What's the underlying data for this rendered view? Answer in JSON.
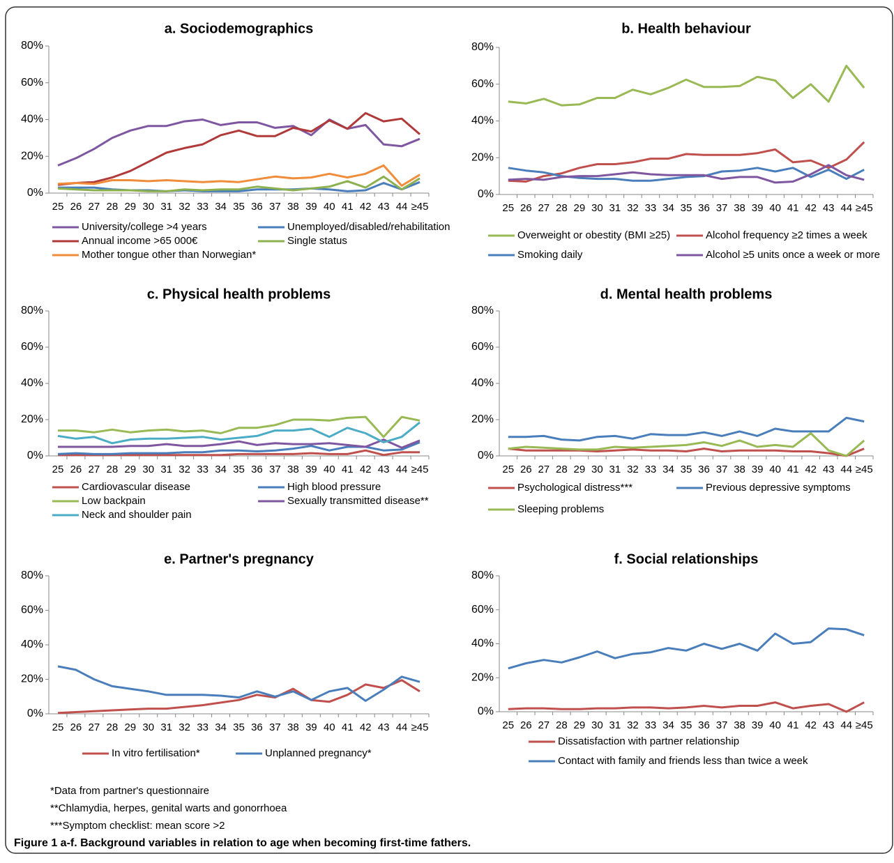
{
  "chart_data": [
    {
      "type": "line",
      "title": "a. Sociodemographics",
      "categories": [
        "25",
        "26",
        "27",
        "28",
        "29",
        "30",
        "31",
        "32",
        "33",
        "34",
        "35",
        "36",
        "37",
        "38",
        "39",
        "40",
        "41",
        "42",
        "43",
        "44",
        "≥45"
      ],
      "ylim": [
        0,
        80
      ],
      "yticks": [
        {
          "value": 0,
          "label": "0%"
        },
        {
          "value": 20,
          "label": "20%"
        },
        {
          "value": 40,
          "label": "40%"
        },
        {
          "value": 60,
          "label": "60%"
        },
        {
          "value": 80,
          "label": "80%"
        }
      ],
      "series": [
        {
          "name": "University/college >4 years",
          "color": "#7e57a0",
          "values": [
            15,
            19,
            24,
            30,
            34,
            36.5,
            36.5,
            39,
            40,
            37,
            38.5,
            38.5,
            35.5,
            36.5,
            31.5,
            40,
            35,
            37,
            26.5,
            25.5,
            29.5
          ]
        },
        {
          "name": "Unemployed/disabled/rehabilitation",
          "color": "#4a7ebb",
          "values": [
            3,
            3,
            3,
            2,
            1.5,
            1.5,
            1,
            1.5,
            1,
            1,
            1,
            2,
            2,
            2,
            2.5,
            2,
            1,
            1.5,
            5.5,
            2,
            6
          ]
        },
        {
          "name": "Annual income >65 000€",
          "color": "#b03a3a",
          "values": [
            4.5,
            5.5,
            6,
            8.5,
            12,
            17,
            22,
            24.5,
            26.5,
            31.5,
            34,
            31,
            31,
            35.5,
            33.5,
            39.5,
            35,
            43.5,
            39,
            40.5,
            32
          ]
        },
        {
          "name": "Single status",
          "color": "#8db14e",
          "values": [
            2.5,
            2,
            1.5,
            1.5,
            1.5,
            1,
            1,
            2,
            1.5,
            2,
            2,
            3.5,
            2.5,
            1.5,
            2.5,
            3.5,
            6.5,
            3,
            9,
            2,
            8
          ]
        },
        {
          "name": "Mother tongue other than Norwegian*",
          "color": "#f08c3a",
          "values": [
            5,
            5.5,
            5,
            7,
            7,
            6.5,
            7,
            6.5,
            6,
            6.5,
            6,
            7.5,
            9,
            8,
            8.5,
            10.5,
            8.5,
            10.5,
            15,
            4,
            10
          ]
        }
      ]
    },
    {
      "type": "line",
      "title": "b. Health behaviour",
      "categories": [
        "25",
        "26",
        "27",
        "28",
        "29",
        "30",
        "31",
        "32",
        "33",
        "34",
        "35",
        "36",
        "37",
        "38",
        "39",
        "40",
        "41",
        "42",
        "43",
        "44",
        "≥45"
      ],
      "ylim": [
        0,
        80
      ],
      "yticks": [
        {
          "value": 0,
          "label": "0%"
        },
        {
          "value": 20,
          "label": "20%"
        },
        {
          "value": 40,
          "label": "40%"
        },
        {
          "value": 60,
          "label": "60%"
        },
        {
          "value": 80,
          "label": "80%"
        }
      ],
      "series": [
        {
          "name": "Overweight or obestity (BMI ≥25)",
          "color": "#98b954",
          "values": [
            50.5,
            49.5,
            52,
            48.5,
            49,
            52.5,
            52.5,
            57,
            54.5,
            58,
            62.5,
            58.5,
            58.5,
            59,
            64,
            62,
            52.5,
            60,
            50.5,
            70,
            58
          ]
        },
        {
          "name": "Alcohol frequency ≥2 times a week",
          "color": "#c0504d",
          "values": [
            7.5,
            7,
            10,
            11.5,
            14.5,
            16.5,
            16.5,
            17.5,
            19.5,
            19.5,
            22,
            21.5,
            21.5,
            21.5,
            22.5,
            24.5,
            17.5,
            18.5,
            14.5,
            19,
            28.5
          ]
        },
        {
          "name": "Smoking daily",
          "color": "#4a7ebb",
          "values": [
            14.5,
            13,
            12,
            10,
            9,
            8.5,
            8.5,
            7.5,
            7.5,
            8.5,
            9.5,
            10,
            12.5,
            13,
            14.5,
            12.5,
            14.5,
            9.5,
            13.5,
            8.5,
            13.5
          ]
        },
        {
          "name": "Alcohol ≥5 units once a week or more",
          "color": "#7e57a0",
          "values": [
            8,
            8.5,
            8,
            9.5,
            10,
            10,
            11,
            12,
            11,
            10.5,
            10.5,
            10.5,
            8.5,
            9.5,
            9.5,
            6.5,
            7,
            11,
            16,
            10.5,
            8
          ]
        }
      ]
    },
    {
      "type": "line",
      "title": "c. Physical health problems",
      "categories": [
        "25",
        "26",
        "27",
        "28",
        "29",
        "30",
        "31",
        "32",
        "33",
        "34",
        "35",
        "36",
        "37",
        "38",
        "39",
        "40",
        "41",
        "42",
        "43",
        "44",
        "≥45"
      ],
      "ylim": [
        0,
        80
      ],
      "yticks": [
        {
          "value": 0,
          "label": "0%"
        },
        {
          "value": 20,
          "label": "20%"
        },
        {
          "value": 40,
          "label": "40%"
        },
        {
          "value": 60,
          "label": "60%"
        },
        {
          "value": 80,
          "label": "80%"
        }
      ],
      "series": [
        {
          "name": "Cardiovascular disease",
          "color": "#c0504d",
          "values": [
            0.5,
            0.5,
            0.5,
            0.5,
            0.5,
            0.5,
            0.5,
            0.5,
            0.5,
            0.5,
            1,
            1,
            1,
            1,
            1.5,
            1,
            1,
            3,
            0.5,
            2,
            2
          ]
        },
        {
          "name": "High blood pressure",
          "color": "#4a7ebb",
          "values": [
            1,
            1.5,
            1,
            1,
            1.5,
            1.5,
            1.5,
            2,
            2,
            3,
            3,
            2.5,
            3,
            4,
            5.5,
            3,
            5,
            5,
            3,
            3.5,
            7.5
          ]
        },
        {
          "name": "Low backpain",
          "color": "#98b954",
          "values": [
            14,
            14,
            13,
            14.5,
            13,
            14,
            14.5,
            13.5,
            14,
            12.5,
            15.5,
            15.5,
            17,
            20,
            20,
            19.5,
            21,
            21.5,
            10.5,
            21.5,
            19.5
          ]
        },
        {
          "name": "Sexually transmitted disease**",
          "color": "#7e57a0",
          "values": [
            5,
            5,
            5,
            5,
            5.5,
            5.5,
            6.5,
            5.5,
            5.5,
            6.5,
            8,
            6,
            7,
            6.5,
            6.5,
            7,
            6,
            5,
            9,
            4.5,
            8.5
          ]
        },
        {
          "name": "Neck and shoulder pain",
          "color": "#4bacc6",
          "values": [
            11,
            9.5,
            10.5,
            7,
            9,
            9.5,
            9.5,
            10,
            10.5,
            9,
            10,
            11,
            14,
            14,
            15,
            10.5,
            15.5,
            12.5,
            7.5,
            10.5,
            18.5
          ]
        }
      ]
    },
    {
      "type": "line",
      "title": "d. Mental health problems",
      "categories": [
        "25",
        "26",
        "27",
        "28",
        "29",
        "30",
        "31",
        "32",
        "33",
        "34",
        "35",
        "36",
        "37",
        "38",
        "39",
        "40",
        "41",
        "42",
        "43",
        "44",
        "≥45"
      ],
      "ylim": [
        0,
        80
      ],
      "yticks": [
        {
          "value": 0,
          "label": "0%"
        },
        {
          "value": 20,
          "label": "20%"
        },
        {
          "value": 40,
          "label": "40%"
        },
        {
          "value": 60,
          "label": "60%"
        },
        {
          "value": 80,
          "label": "80%"
        }
      ],
      "series": [
        {
          "name": "Psychological distress***",
          "color": "#c0504d",
          "values": [
            4,
            3,
            3,
            3,
            3,
            2.5,
            3,
            3.5,
            3,
            3,
            2.5,
            4,
            2.5,
            3,
            3,
            3,
            2.5,
            2.5,
            1.5,
            0,
            4
          ]
        },
        {
          "name": "Previous depressive symptoms",
          "color": "#4a7ebb",
          "values": [
            10.5,
            10.5,
            11,
            9,
            8.5,
            10.5,
            11,
            9.5,
            12,
            11.5,
            11.5,
            13,
            11,
            13.5,
            11,
            15,
            13.5,
            13.5,
            13.5,
            21,
            19
          ]
        },
        {
          "name": "Sleeping problems",
          "color": "#98b954",
          "values": [
            4,
            5,
            4.5,
            4,
            3.5,
            3.5,
            5,
            4.5,
            5,
            5.5,
            6,
            7.5,
            5.5,
            8.5,
            5,
            6,
            5,
            12.5,
            3,
            0,
            8.5
          ]
        }
      ]
    },
    {
      "type": "line",
      "title": "e. Partner's pregnancy",
      "categories": [
        "25",
        "26",
        "27",
        "28",
        "29",
        "30",
        "31",
        "32",
        "33",
        "34",
        "35",
        "36",
        "37",
        "38",
        "39",
        "40",
        "41",
        "42",
        "43",
        "44",
        "≥45"
      ],
      "ylim": [
        0,
        80
      ],
      "yticks": [
        {
          "value": 0,
          "label": "0%"
        },
        {
          "value": 20,
          "label": "20%"
        },
        {
          "value": 40,
          "label": "40%"
        },
        {
          "value": 60,
          "label": "60%"
        },
        {
          "value": 80,
          "label": "80%"
        }
      ],
      "series": [
        {
          "name": "In vitro fertilisation*",
          "color": "#c0504d",
          "values": [
            0.5,
            1,
            1.5,
            2,
            2.5,
            3,
            3,
            4,
            5,
            6.5,
            8,
            11,
            9.5,
            14.5,
            8,
            7,
            11,
            17,
            15,
            19.5,
            13
          ]
        },
        {
          "name": "Unplanned pregnancy*",
          "color": "#4a7ebb",
          "values": [
            27.5,
            25.5,
            20,
            16,
            14.5,
            13,
            11,
            11,
            11,
            10.5,
            9.5,
            13,
            10,
            13,
            8,
            13,
            15,
            7.5,
            14,
            21.5,
            18.5
          ]
        }
      ]
    },
    {
      "type": "line",
      "title": "f. Social relationships",
      "categories": [
        "25",
        "26",
        "27",
        "28",
        "29",
        "30",
        "31",
        "32",
        "33",
        "34",
        "35",
        "36",
        "37",
        "38",
        "39",
        "40",
        "41",
        "42",
        "43",
        "44",
        "≥45"
      ],
      "ylim": [
        0,
        80
      ],
      "yticks": [
        {
          "value": 0,
          "label": "0%"
        },
        {
          "value": 20,
          "label": "20%"
        },
        {
          "value": 40,
          "label": "40%"
        },
        {
          "value": 60,
          "label": "60%"
        },
        {
          "value": 80,
          "label": "80%"
        }
      ],
      "series": [
        {
          "name": "Dissatisfaction with partner relationship",
          "color": "#c0504d",
          "values": [
            1.5,
            2,
            2,
            1.5,
            1.5,
            2,
            2,
            2.5,
            2.5,
            2,
            2.5,
            3.5,
            2.5,
            3.5,
            3.5,
            5.5,
            2,
            3.5,
            4.5,
            0,
            5.5
          ]
        },
        {
          "name": "Contact with family and friends less than twice a week",
          "color": "#4a7ebb",
          "values": [
            25.5,
            28.5,
            30.5,
            29,
            32,
            35.5,
            31.5,
            34,
            35,
            37.5,
            36,
            40,
            37,
            40,
            36,
            46,
            40,
            41,
            49,
            48.5,
            45
          ]
        }
      ]
    }
  ],
  "footnotes": [
    "*Data from partner's questionnaire",
    "**Chlamydia, herpes, genital warts and gonorrhoea",
    "***Symptom checklist: mean score >2"
  ],
  "caption": "Figure 1 a-f. Background variables in relation to age when becoming first-time fathers."
}
